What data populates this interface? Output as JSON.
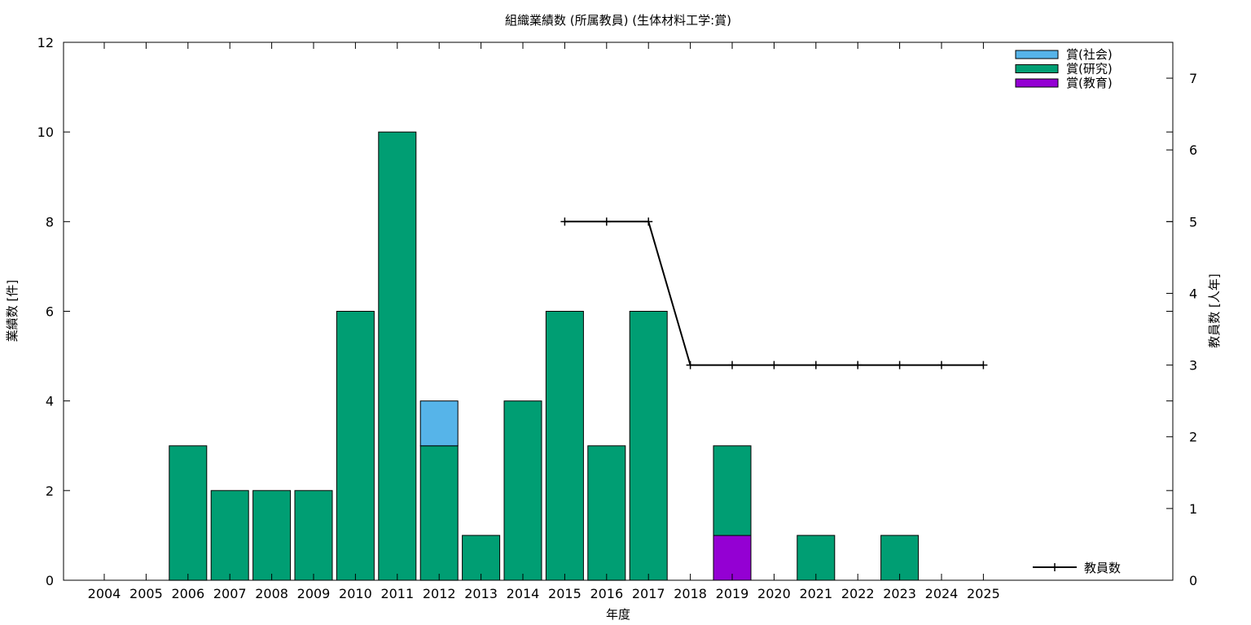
{
  "chart_data": {
    "type": "bar",
    "title": "組織業績数 (所属教員) (生体材料工学:賞)",
    "xlabel": "年度",
    "ylabel": "業績数 [件]",
    "y2label": "教員数 [人年]",
    "categories": [
      "2004",
      "2005",
      "2006",
      "2007",
      "2008",
      "2009",
      "2010",
      "2011",
      "2012",
      "2013",
      "2014",
      "2015",
      "2016",
      "2017",
      "2018",
      "2019",
      "2020",
      "2021",
      "2022",
      "2023",
      "2024",
      "2025"
    ],
    "ylim": [
      0,
      12
    ],
    "y_ticks": [
      0,
      2,
      4,
      6,
      8,
      10,
      12
    ],
    "y2lim": [
      0,
      7.5
    ],
    "y2_ticks": [
      0,
      1,
      2,
      3,
      4,
      5,
      6,
      7
    ],
    "stacked": true,
    "series": [
      {
        "name": "賞(教育)",
        "color": "#9400d3",
        "values": [
          0,
          0,
          0,
          0,
          0,
          0,
          0,
          0,
          0,
          0,
          0,
          0,
          0,
          0,
          0,
          1,
          0,
          0,
          0,
          0,
          0,
          0
        ]
      },
      {
        "name": "賞(研究)",
        "color": "#009e73",
        "values": [
          0,
          0,
          3,
          2,
          2,
          2,
          6,
          10,
          3,
          1,
          4,
          6,
          3,
          6,
          0,
          2,
          0,
          1,
          0,
          1,
          0,
          0
        ]
      },
      {
        "name": "賞(社会)",
        "color": "#56b4e9",
        "values": [
          0,
          0,
          0,
          0,
          0,
          0,
          0,
          0,
          1,
          0,
          0,
          0,
          0,
          0,
          0,
          0,
          0,
          0,
          0,
          0,
          0,
          0
        ]
      }
    ],
    "line_series": {
      "name": "教員数",
      "color": "#000000",
      "axis": "y2",
      "x": [
        "2015",
        "2016",
        "2017",
        "2018",
        "2019",
        "2020",
        "2021",
        "2022",
        "2023",
        "2024",
        "2025"
      ],
      "values": [
        5,
        5,
        5,
        3,
        3,
        3,
        3,
        3,
        3,
        3,
        3
      ]
    },
    "legend_order": [
      "賞(社会)",
      "賞(研究)",
      "賞(教育)"
    ],
    "legend_position": "top-right",
    "line_legend_position": "bottom-right",
    "grid": false
  }
}
